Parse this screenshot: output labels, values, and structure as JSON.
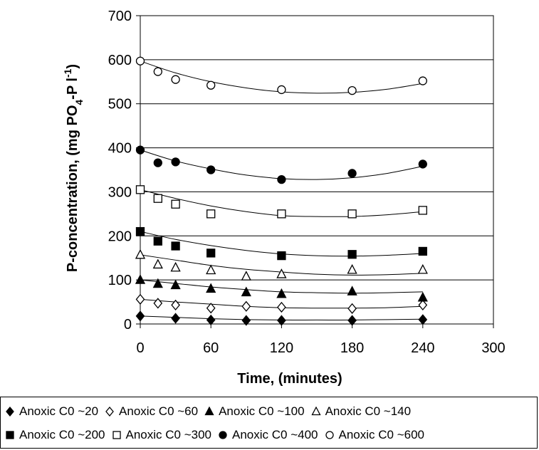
{
  "chart_data": {
    "type": "scatter",
    "xlabel": "Time, (minutes)",
    "ylabel": "P-concentration, (mg PO4-P l-1)",
    "ylabel_parts": {
      "prefix": "P-concentration, (mg PO",
      "sub": "4",
      "middle": "-P l",
      "sup": "-1",
      "suffix": ")"
    },
    "xlim": [
      0,
      300
    ],
    "ylim": [
      0,
      700
    ],
    "xticks": [
      0,
      60,
      120,
      180,
      240,
      300
    ],
    "yticks": [
      0,
      100,
      200,
      300,
      400,
      500,
      600,
      700
    ],
    "grid": "horizontal",
    "legend_position": "bottom",
    "series": [
      {
        "name": "Anoxic C0 ~20",
        "marker": "diamond",
        "filled": true,
        "x": [
          0,
          30,
          60,
          90,
          120,
          180,
          240
        ],
        "y": [
          18,
          13,
          9,
          8,
          8,
          8,
          10
        ],
        "fit": [
          18,
          15,
          12,
          10,
          9,
          9,
          9,
          10,
          11
        ]
      },
      {
        "name": "Anoxic C0 ~60",
        "marker": "diamond",
        "filled": false,
        "x": [
          0,
          15,
          30,
          60,
          90,
          120,
          180,
          240
        ],
        "y": [
          56,
          47,
          43,
          36,
          40,
          38,
          35,
          43
        ],
        "fit": [
          56,
          50,
          45,
          40,
          37,
          36,
          36,
          37,
          40
        ]
      },
      {
        "name": "Anoxic C0 ~100",
        "marker": "triangle",
        "filled": true,
        "x": [
          0,
          15,
          30,
          60,
          90,
          120,
          180,
          240
        ],
        "y": [
          100,
          91,
          88,
          80,
          72,
          68,
          74,
          60
        ],
        "fit": [
          100,
          92,
          84,
          78,
          73,
          71,
          70,
          71,
          73
        ]
      },
      {
        "name": "Anoxic C0 ~140",
        "marker": "triangle",
        "filled": false,
        "x": [
          0,
          15,
          30,
          60,
          90,
          120,
          180,
          240
        ],
        "y": [
          157,
          135,
          128,
          122,
          108,
          113,
          123,
          123
        ],
        "fit": [
          157,
          145,
          133,
          124,
          118,
          113,
          111,
          112,
          115
        ]
      },
      {
        "name": "Anoxic C0 ~200",
        "marker": "square",
        "filled": true,
        "x": [
          0,
          15,
          30,
          60,
          120,
          180,
          240
        ],
        "y": [
          210,
          188,
          177,
          161,
          155,
          158,
          165
        ],
        "fit": [
          210,
          192,
          178,
          167,
          159,
          155,
          154,
          156,
          160
        ]
      },
      {
        "name": "Anoxic C0 ~300",
        "marker": "square",
        "filled": false,
        "x": [
          0,
          15,
          30,
          60,
          120,
          180,
          240
        ],
        "y": [
          305,
          285,
          272,
          250,
          250,
          250,
          258
        ],
        "fit": [
          305,
          285,
          268,
          255,
          246,
          244,
          244,
          248,
          255
        ]
      },
      {
        "name": "Anoxic C0 ~400",
        "marker": "circle",
        "filled": true,
        "x": [
          0,
          15,
          30,
          60,
          120,
          180,
          240
        ],
        "y": [
          395,
          366,
          368,
          350,
          328,
          342,
          363
        ],
        "fit": [
          395,
          370,
          352,
          338,
          330,
          328,
          332,
          342,
          358
        ]
      },
      {
        "name": "Anoxic C0 ~600",
        "marker": "circle",
        "filled": false,
        "x": [
          0,
          15,
          30,
          60,
          120,
          180,
          240
        ],
        "y": [
          597,
          573,
          555,
          542,
          532,
          530,
          552
        ],
        "fit": [
          597,
          570,
          550,
          536,
          527,
          524,
          526,
          533,
          546
        ]
      }
    ],
    "fit_x": [
      0,
      30,
      60,
      90,
      120,
      150,
      180,
      210,
      240
    ]
  }
}
